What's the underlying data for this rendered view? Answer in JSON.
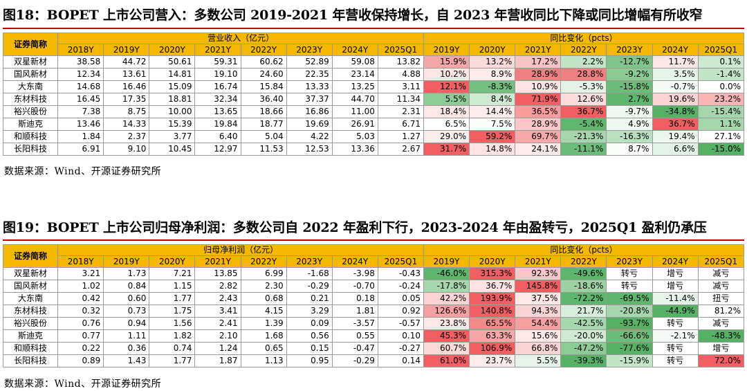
{
  "figures": [
    {
      "title": "图18：BOPET 上市公司营入：多数公司 2019-2021 年营收保持增长，自 2023 年营收同比下降或同比增幅有所收窄",
      "corner_label": "证券简称",
      "left_group": "营业收入（亿元）",
      "right_group": "同比变化（pcts）",
      "left_years": [
        "2018Y",
        "2019Y",
        "2020Y",
        "2021Y",
        "2022Y",
        "2023Y",
        "2024Y",
        "2025Q1"
      ],
      "right_years": [
        "2019Y",
        "2020Y",
        "2021Y",
        "2022Y",
        "2023Y",
        "2024Y",
        "2025Q1"
      ],
      "rows": [
        {
          "name": "双星新材",
          "values": [
            "38.58",
            "44.72",
            "50.61",
            "59.31",
            "60.62",
            "52.89",
            "59.08",
            "13.82"
          ],
          "changes": [
            "15.9%",
            "13.2%",
            "17.2%",
            "2.2%",
            "-12.7%",
            "11.7%",
            "0.1%"
          ],
          "colors": [
            "#f4a7a8",
            "#fbdada",
            "#f8c3c4",
            "#c3e4c7",
            "#7fc48a",
            "#fbe6e6",
            "#cde9d1"
          ]
        },
        {
          "name": "国风新材",
          "values": [
            "12.34",
            "13.61",
            "14.81",
            "19.10",
            "24.60",
            "22.35",
            "23.14",
            "4.88"
          ],
          "changes": [
            "10.2%",
            "8.9%",
            "28.9%",
            "28.8%",
            "-9.2%",
            "3.5%",
            "-1.4%"
          ],
          "colors": [
            "#fce6e6",
            "#fdeaea",
            "#f07f82",
            "#f07f82",
            "#8cc995",
            "#e6f3e8",
            "#c3e4c7"
          ]
        },
        {
          "name": "大东南",
          "values": [
            "14.68",
            "16.46",
            "15.09",
            "16.74",
            "15.84",
            "13.33",
            "13.25",
            "3.11"
          ],
          "changes": [
            "12.1%",
            "-8.3%",
            "10.9%",
            "-5.3%",
            "-15.8%",
            "-0.7%",
            "0.0%"
          ],
          "colors": [
            "#f15f63",
            "#73bf7f",
            "#fbe4e4",
            "#e4f2e6",
            "#6cbc79",
            "#f5faf6",
            "#ffffff"
          ]
        },
        {
          "name": "东材科技",
          "values": [
            "16.45",
            "17.35",
            "18.81",
            "32.34",
            "36.40",
            "37.37",
            "44.70",
            "11.34"
          ],
          "changes": [
            "5.5%",
            "8.4%",
            "71.9%",
            "12.6%",
            "2.7%",
            "19.6%",
            "23.2%"
          ],
          "colors": [
            "#8ccb96",
            "#cfe9d3",
            "#f15f63",
            "#fbdddd",
            "#5eb56c",
            "#fad4d5",
            "#f7b5b6"
          ]
        },
        {
          "name": "裕兴股份",
          "values": [
            "7.38",
            "8.75",
            "10.00",
            "13.65",
            "18.66",
            "16.86",
            "11.00",
            "2.31"
          ],
          "changes": [
            "18.4%",
            "14.4%",
            "36.5%",
            "36.7%",
            "-9.7%",
            "-34.8%",
            "-15.4%"
          ],
          "colors": [
            "#fde7e7",
            "#fdeded",
            "#f89c9e",
            "#f15f63",
            "#eef7f0",
            "#56b165",
            "#a6d6ad"
          ]
        },
        {
          "name": "斯迪克",
          "values": [
            "13.46",
            "14.33",
            "15.39",
            "19.84",
            "18.77",
            "19.69",
            "26.91",
            "6.71"
          ],
          "changes": [
            "6.5%",
            "7.5%",
            "28.9%",
            "-5.4%",
            "4.9%",
            "36.7%",
            "1.1%"
          ],
          "colors": [
            "#ffffff",
            "#fbfdfb",
            "#f9c7c8",
            "#61b66f",
            "#eef7f0",
            "#f15f63",
            "#a6d6ad"
          ]
        },
        {
          "name": "和顺科技",
          "values": [
            "1.84",
            "2.37",
            "3.77",
            "6.40",
            "5.04",
            "4.22",
            "5.03",
            "1.27"
          ],
          "changes": [
            "29.0%",
            "59.2%",
            "69.7%",
            "-21.3%",
            "-16.3%",
            "19.4%",
            "27.1%"
          ],
          "colors": [
            "#fdeeee",
            "#f15f63",
            "#f6a9aa",
            "#a6d6ad",
            "#b8dfbe",
            "#ebf6ed",
            "#ffffff"
          ]
        },
        {
          "name": "长阳科技",
          "values": [
            "6.91",
            "9.10",
            "10.45",
            "12.97",
            "11.53",
            "12.53",
            "13.36",
            "2.67"
          ],
          "changes": [
            "31.7%",
            "14.8%",
            "24.1%",
            "-11.1%",
            "8.7%",
            "6.6%",
            "-15.0%"
          ],
          "colors": [
            "#f15f63",
            "#fde3e3",
            "#fdeaea",
            "#6dbd7a",
            "#fbfdfb",
            "#e3f2e6",
            "#56b165"
          ]
        }
      ],
      "source": "数据来源：Wind、开源证券研究所"
    },
    {
      "title": "图19：BOPET 上市公司归母净利润：多数公司自 2022 年盈利下行，2023-2024 年由盈转亏，2025Q1 盈利仍承压",
      "corner_label": "证券简称",
      "left_group": "归母净利润（亿元）",
      "right_group": "同比变化（pcts）",
      "left_years": [
        "2018Y",
        "2019Y",
        "2020Y",
        "2021Y",
        "2022Y",
        "2023Y",
        "2024Y",
        "2025Q1"
      ],
      "right_years": [
        "2019Y",
        "2020Y",
        "2021Y",
        "2022Y",
        "2023Y",
        "2024Y",
        "2025Q1"
      ],
      "rows": [
        {
          "name": "双星新材",
          "values": [
            "3.21",
            "1.73",
            "7.21",
            "13.85",
            "6.99",
            "-1.68",
            "-3.98",
            "-0.43"
          ],
          "changes": [
            "-46.0%",
            "315.3%",
            "92.3%",
            "-49.6%",
            "转亏",
            "增亏",
            "减亏"
          ],
          "colors": [
            "#5eb56c",
            "#f15f63",
            "#f9c7c8",
            "#5eb56c",
            "#ffffff",
            "#ffffff",
            "#ffffff"
          ]
        },
        {
          "name": "国风新材",
          "values": [
            "1.02",
            "0.84",
            "1.15",
            "2.82",
            "2.30",
            "-0.29",
            "-0.70",
            "-0.24"
          ],
          "changes": [
            "-17.8%",
            "36.7%",
            "145.8%",
            "-18.6%",
            "转亏",
            "增亏",
            "减亏"
          ],
          "colors": [
            "#a6d6ad",
            "#fde3e3",
            "#f15f63",
            "#9bd1a3",
            "#ffffff",
            "#ffffff",
            "#ffffff"
          ]
        },
        {
          "name": "大东南",
          "values": [
            "0.42",
            "0.60",
            "1.77",
            "2.43",
            "0.68",
            "0.21",
            "0.18",
            "0.05"
          ],
          "changes": [
            "42.2%",
            "193.9%",
            "37.5%",
            "-72.2%",
            "-69.5%",
            "-11.4%",
            "扭亏"
          ],
          "colors": [
            "#fad4d5",
            "#f15f63",
            "#fde7e7",
            "#5eb56c",
            "#5eb56c",
            "#e6f3e8",
            "#ffffff"
          ]
        },
        {
          "name": "东材科技",
          "values": [
            "0.32",
            "0.73",
            "1.75",
            "3.41",
            "4.15",
            "3.29",
            "1.81",
            "0.92"
          ],
          "changes": [
            "126.6%",
            "140.8%",
            "94.3%",
            "21.7%",
            "-20.8%",
            "-44.9%",
            "81.2%"
          ],
          "colors": [
            "#f5a0a2",
            "#f15f63",
            "#fad4d5",
            "#d8eedc",
            "#a6d6ad",
            "#56b165",
            "#ffffff"
          ]
        },
        {
          "name": "裕兴股份",
          "values": [
            "0.76",
            "0.94",
            "1.56",
            "2.41",
            "1.39",
            "0.09",
            "-3.57",
            "-0.57"
          ],
          "changes": [
            "23.8%",
            "65.5%",
            "54.4%",
            "-42.5%",
            "-93.7%",
            "转亏",
            "减亏"
          ],
          "colors": [
            "#fde7e7",
            "#f28a8c",
            "#f5a0a2",
            "#a6d6ad",
            "#56b165",
            "#ffffff",
            "#ffffff"
          ]
        },
        {
          "name": "斯迪克",
          "values": [
            "0.77",
            "1.11",
            "1.82",
            "2.10",
            "1.68",
            "0.56",
            "0.55",
            "0.10"
          ],
          "changes": [
            "45.3%",
            "63.3%",
            "15.6%",
            "-20.0%",
            "-66.6%",
            "-2.1%",
            "-48.3%"
          ],
          "colors": [
            "#f15f63",
            "#f4a7a8",
            "#fde7e7",
            "#cfe9d3",
            "#6dbd7a",
            "#f5faf6",
            "#56b165"
          ]
        },
        {
          "name": "和顺科技",
          "values": [
            "0.22",
            "0.36",
            "0.74",
            "1.24",
            "0.65",
            "0.15",
            "-0.47",
            "-0.27"
          ],
          "changes": [
            "60.7%",
            "106.9%",
            "66.8%",
            "-47.2%",
            "-77.6%",
            "转亏",
            "增亏"
          ],
          "colors": [
            "#fbdada",
            "#f15f63",
            "#fad4d5",
            "#8ccb96",
            "#56b165",
            "#ffffff",
            "#ffffff"
          ]
        },
        {
          "name": "长阳科技",
          "values": [
            "0.89",
            "1.43",
            "1.77",
            "1.87",
            "1.13",
            "0.95",
            "-0.29",
            "0.14"
          ],
          "changes": [
            "61.0%",
            "23.7%",
            "5.5%",
            "-39.3%",
            "-15.9%",
            "转亏",
            "72.0%"
          ],
          "colors": [
            "#f15f63",
            "#fdeaea",
            "#e6f3e8",
            "#56b165",
            "#c3e4c7",
            "#ffffff",
            "#f15f63"
          ]
        }
      ],
      "source": "数据来源：Wind、开源证券研究所"
    }
  ]
}
